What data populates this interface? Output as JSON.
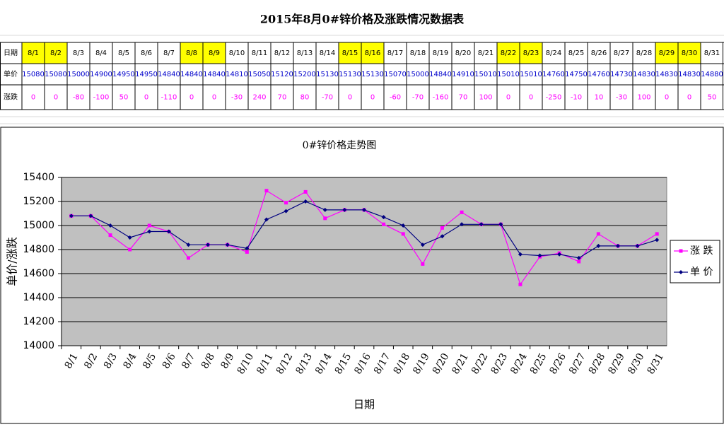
{
  "title": "2015年8月0#锌价格及涨跌情况数据表",
  "table": {
    "row_headers": [
      "日期",
      "单价",
      "涨跌"
    ],
    "dates": [
      "8/1",
      "8/2",
      "8/3",
      "8/4",
      "8/5",
      "8/6",
      "8/7",
      "8/8",
      "8/9",
      "8/10",
      "8/11",
      "8/12",
      "8/13",
      "8/14",
      "8/15",
      "8/16",
      "8/17",
      "8/18",
      "8/19",
      "8/20",
      "8/21",
      "8/22",
      "8/23",
      "8/24",
      "8/25",
      "8/26",
      "8/27",
      "8/28",
      "8/29",
      "8/30",
      "8/31"
    ],
    "prices": [
      15080,
      15080,
      15000,
      14900,
      14950,
      14950,
      14840,
      14840,
      14840,
      14810,
      15050,
      15120,
      15200,
      15130,
      15130,
      15130,
      15070,
      15000,
      14840,
      14910,
      15010,
      15010,
      15010,
      14760,
      14750,
      14760,
      14730,
      14830,
      14830,
      14830,
      14880
    ],
    "changes": [
      0,
      0,
      -80,
      -100,
      50,
      0,
      -110,
      0,
      0,
      -30,
      240,
      70,
      80,
      -70,
      0,
      0,
      -60,
      -70,
      -160,
      70,
      100,
      0,
      0,
      -250,
      -10,
      10,
      -30,
      100,
      0,
      0,
      50
    ],
    "highlight": [
      true,
      true,
      false,
      false,
      false,
      false,
      false,
      true,
      true,
      false,
      false,
      false,
      false,
      false,
      true,
      true,
      false,
      false,
      false,
      false,
      false,
      true,
      true,
      false,
      false,
      false,
      false,
      false,
      true,
      true,
      false
    ],
    "highlight_color": "#ffff00",
    "price_color": "#0000cc",
    "change_color": "#ff00ff"
  },
  "chart_data": {
    "type": "line",
    "title": "0#锌价格走势图",
    "x_label": "日期",
    "y_label": "单价/涨跌",
    "categories": [
      "8/1",
      "8/2",
      "8/3",
      "8/4",
      "8/5",
      "8/6",
      "8/7",
      "8/8",
      "8/9",
      "8/10",
      "8/11",
      "8/12",
      "8/13",
      "8/14",
      "8/15",
      "8/16",
      "8/17",
      "8/18",
      "8/19",
      "8/20",
      "8/21",
      "8/22",
      "8/23",
      "8/24",
      "8/25",
      "8/26",
      "8/27",
      "8/28",
      "8/29",
      "8/30",
      "8/31"
    ],
    "series": [
      {
        "name": "涨 跌",
        "color": "#ff00ff",
        "marker": "square",
        "values": [
          15080,
          15080,
          14920,
          14800,
          15000,
          14950,
          14730,
          14840,
          14840,
          14780,
          15290,
          15190,
          15280,
          15060,
          15130,
          15130,
          15010,
          14930,
          14680,
          14980,
          15110,
          15010,
          15010,
          14510,
          14740,
          14770,
          14700,
          14930,
          14830,
          14830,
          14930
        ]
      },
      {
        "name": "单 价",
        "color": "#000080",
        "marker": "diamond",
        "values": [
          15080,
          15080,
          15000,
          14900,
          14950,
          14950,
          14840,
          14840,
          14840,
          14810,
          15050,
          15120,
          15200,
          15130,
          15130,
          15130,
          15070,
          15000,
          14840,
          14910,
          15010,
          15010,
          15010,
          14760,
          14750,
          14760,
          14730,
          14830,
          14830,
          14830,
          14880
        ]
      }
    ],
    "ylim": [
      14000,
      15400
    ],
    "yticks": [
      14000,
      14200,
      14400,
      14600,
      14800,
      15000,
      15200,
      15400
    ],
    "grid": true,
    "plot_background": "#c0c0c0",
    "legend": "right"
  }
}
